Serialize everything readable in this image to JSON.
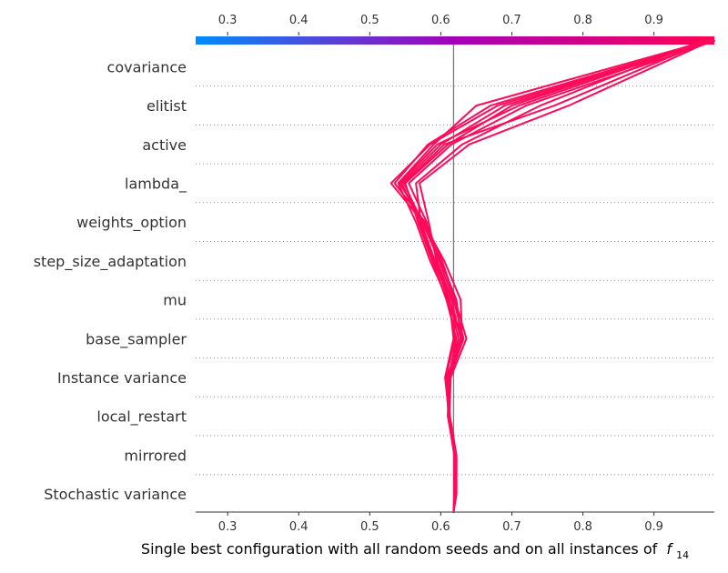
{
  "chart_data": {
    "type": "line",
    "plot_kind": "shap-decision-plot",
    "xlabel": "Single best configuration with all random seeds and on all instances of",
    "xlabel_math": "f",
    "xlabel_sub": "14",
    "xlim": [
      0.255,
      0.985
    ],
    "x_ticks": [
      "0.3",
      "0.4",
      "0.5",
      "0.6",
      "0.7",
      "0.8",
      "0.9"
    ],
    "base_value": 0.618,
    "features": [
      "covariance",
      "elitist",
      "active",
      "lambda_",
      "weights_option",
      "step_size_adaptation",
      "mu",
      "base_sampler",
      "Instance variance",
      "local_restart",
      "mirrored",
      "Stochastic variance"
    ],
    "colorbar": {
      "low_color": "#008bfb",
      "mid_color": "#a400b8",
      "high_color": "#ff0052"
    },
    "line_color": "#ff0a5a",
    "series": [
      {
        "values": [
          0.618,
          0.622,
          0.622,
          0.61,
          0.612,
          0.63,
          0.628,
          0.605,
          0.575,
          0.53,
          0.585,
          0.68,
          0.98
        ]
      },
      {
        "values": [
          0.618,
          0.62,
          0.62,
          0.612,
          0.608,
          0.63,
          0.61,
          0.585,
          0.565,
          0.54,
          0.59,
          0.65,
          0.975
        ]
      },
      {
        "values": [
          0.618,
          0.621,
          0.621,
          0.611,
          0.61,
          0.625,
          0.612,
          0.59,
          0.57,
          0.545,
          0.6,
          0.69,
          0.982
        ]
      },
      {
        "values": [
          0.618,
          0.619,
          0.619,
          0.61,
          0.611,
          0.622,
          0.608,
          0.588,
          0.568,
          0.55,
          0.61,
          0.7,
          0.97
        ]
      },
      {
        "values": [
          0.618,
          0.62,
          0.62,
          0.612,
          0.614,
          0.636,
          0.62,
          0.602,
          0.578,
          0.535,
          0.582,
          0.67,
          0.978
        ]
      },
      {
        "values": [
          0.618,
          0.622,
          0.622,
          0.613,
          0.609,
          0.628,
          0.615,
          0.595,
          0.58,
          0.555,
          0.615,
          0.72,
          0.985
        ]
      },
      {
        "values": [
          0.618,
          0.62,
          0.62,
          0.611,
          0.607,
          0.62,
          0.616,
          0.592,
          0.572,
          0.565,
          0.63,
          0.74,
          0.968
        ]
      },
      {
        "values": [
          0.618,
          0.621,
          0.621,
          0.61,
          0.612,
          0.632,
          0.618,
          0.598,
          0.574,
          0.548,
          0.605,
          0.76,
          0.976
        ]
      },
      {
        "values": [
          0.618,
          0.619,
          0.619,
          0.612,
          0.606,
          0.618,
          0.612,
          0.594,
          0.583,
          0.57,
          0.64,
          0.78,
          0.98
        ]
      },
      {
        "values": [
          0.618,
          0.62,
          0.62,
          0.611,
          0.613,
          0.628,
          0.622,
          0.6,
          0.576,
          0.542,
          0.595,
          0.71,
          0.974
        ]
      }
    ]
  }
}
